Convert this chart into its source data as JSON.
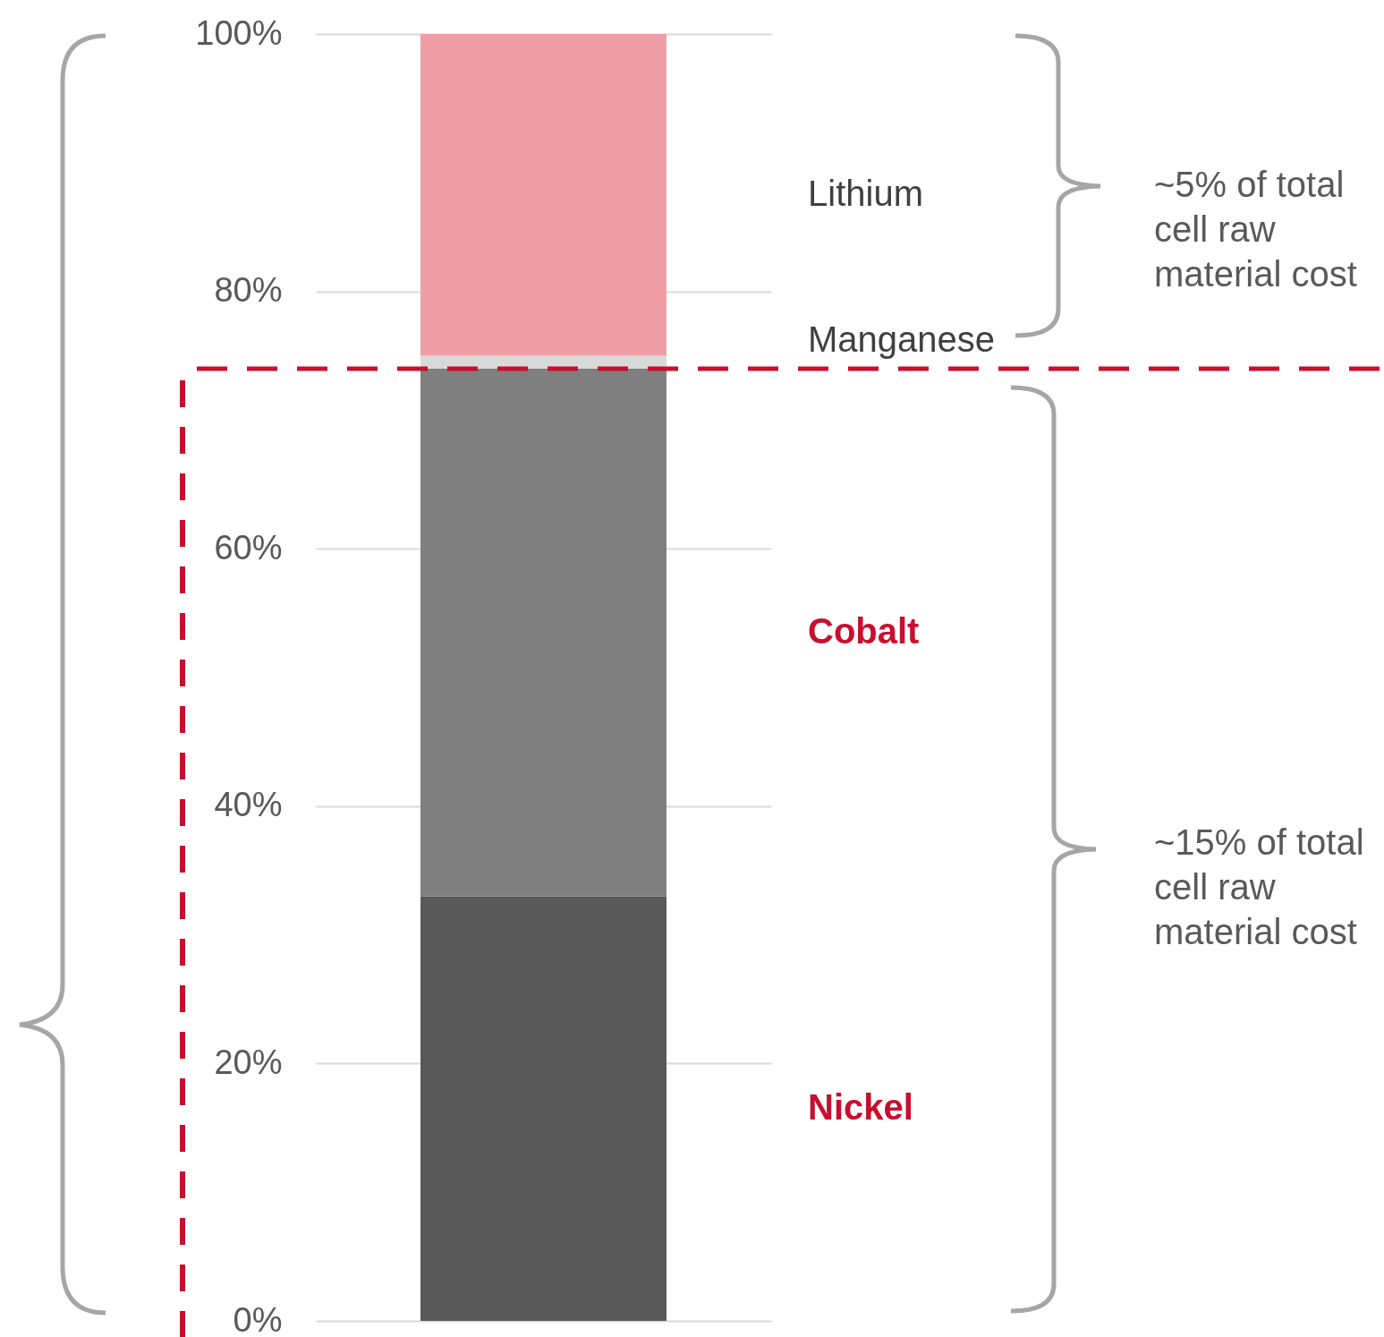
{
  "chart_data": {
    "type": "bar",
    "stacked": true,
    "categories": [
      null
    ],
    "series": [
      {
        "name": "Nickel",
        "color": "#595959",
        "values": [
          33
        ]
      },
      {
        "name": "Cobalt",
        "color": "#7f7f7f",
        "values": [
          41
        ]
      },
      {
        "name": "Manganese",
        "color": "#d9d9d9",
        "values": [
          1
        ]
      },
      {
        "name": "Lithium",
        "color": "#f09ea5",
        "values": [
          25
        ]
      }
    ],
    "ylim": [
      0,
      100
    ],
    "yticks": [
      {
        "value": 0,
        "label": "0%"
      },
      {
        "value": 20,
        "label": "20%"
      },
      {
        "value": 40,
        "label": "40%"
      },
      {
        "value": 60,
        "label": "60%"
      },
      {
        "value": 80,
        "label": "80%"
      },
      {
        "value": 100,
        "label": "100%"
      }
    ],
    "grid": "y",
    "legend": false,
    "ref_lines": [
      {
        "axis": "y",
        "value": 74,
        "color": "#c8102e",
        "line_style": "dashed"
      }
    ],
    "annotations": [
      "~5% of total cell raw material cost",
      "~15% of total cell raw material cost"
    ]
  }
}
